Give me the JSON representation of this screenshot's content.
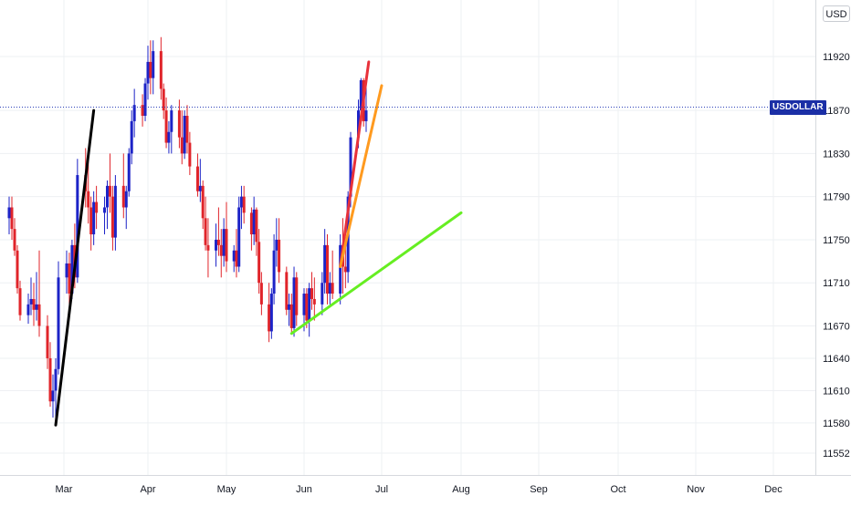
{
  "currency_label": "USD",
  "symbol_tag": "USDOLLAR",
  "colors": {
    "up": "#1c23c7",
    "down": "#e0242a",
    "grid": "#eef0f3",
    "axis_text": "#131722",
    "price_line": "#2a3fb8",
    "trend_black": "#000000",
    "trend_red": "#e8313a",
    "trend_orange": "#ff9a1f",
    "trend_green": "#66ee22"
  },
  "chart_data": {
    "type": "candlestick",
    "y_ticks": [
      "11920",
      "11870",
      "11830",
      "11790",
      "11750",
      "11710",
      "11670",
      "11640",
      "11610",
      "11580",
      "11552"
    ],
    "x_ticks": [
      "Mar",
      "Apr",
      "May",
      "Jun",
      "Jul",
      "Aug",
      "Sep",
      "Oct",
      "Nov",
      "Dec"
    ],
    "current_price_line": 11873,
    "ylim": [
      11540,
      11965
    ],
    "series": [
      {
        "label": "Feb 10",
        "open": 11770,
        "high": 11790,
        "low": 11755,
        "close": 11780
      },
      {
        "label": "Feb 11",
        "open": 11780,
        "high": 11790,
        "low": 11750,
        "close": 11760
      },
      {
        "label": "Feb 12",
        "open": 11760,
        "high": 11770,
        "low": 11735,
        "close": 11740
      },
      {
        "label": "Feb 13",
        "open": 11740,
        "high": 11745,
        "low": 11700,
        "close": 11705
      },
      {
        "label": "Feb 14",
        "open": 11705,
        "high": 11712,
        "low": 11675,
        "close": 11680
      },
      {
        "label": "Feb 17",
        "open": 11680,
        "high": 11700,
        "low": 11672,
        "close": 11690
      },
      {
        "label": "Feb 18",
        "open": 11690,
        "high": 11715,
        "low": 11680,
        "close": 11695
      },
      {
        "label": "Feb 19",
        "open": 11695,
        "high": 11710,
        "low": 11670,
        "close": 11685
      },
      {
        "label": "Feb 20",
        "open": 11685,
        "high": 11720,
        "low": 11675,
        "close": 11690
      },
      {
        "label": "Feb 21",
        "open": 11690,
        "high": 11740,
        "low": 11660,
        "close": 11670
      },
      {
        "label": "Feb 24",
        "open": 11670,
        "high": 11680,
        "low": 11630,
        "close": 11640
      },
      {
        "label": "Feb 25",
        "open": 11640,
        "high": 11655,
        "low": 11595,
        "close": 11600
      },
      {
        "label": "Feb 26",
        "open": 11600,
        "high": 11625,
        "low": 11585,
        "close": 11610
      },
      {
        "label": "Feb 27",
        "open": 11610,
        "high": 11640,
        "low": 11580,
        "close": 11630
      },
      {
        "label": "Feb 28",
        "open": 11630,
        "high": 11730,
        "low": 11625,
        "close": 11715
      },
      {
        "label": "Mar 02",
        "open": 11715,
        "high": 11740,
        "low": 11700,
        "close": 11728
      },
      {
        "label": "Mar 03",
        "open": 11728,
        "high": 11738,
        "low": 11690,
        "close": 11700
      },
      {
        "label": "Mar 04",
        "open": 11700,
        "high": 11750,
        "low": 11695,
        "close": 11745
      },
      {
        "label": "Mar 05",
        "open": 11745,
        "high": 11765,
        "low": 11705,
        "close": 11715
      },
      {
        "label": "Mar 06",
        "open": 11715,
        "high": 11825,
        "low": 11710,
        "close": 11810
      },
      {
        "label": "Mar 09",
        "open": 11810,
        "high": 11835,
        "low": 11780,
        "close": 11795
      },
      {
        "label": "Mar 10",
        "open": 11795,
        "high": 11830,
        "low": 11765,
        "close": 11780
      },
      {
        "label": "Mar 11",
        "open": 11780,
        "high": 11790,
        "low": 11740,
        "close": 11755
      },
      {
        "label": "Mar 12",
        "open": 11755,
        "high": 11795,
        "low": 11745,
        "close": 11785
      },
      {
        "label": "Mar 13",
        "open": 11785,
        "high": 11800,
        "low": 11760,
        "close": 11775
      },
      {
        "label": "Mar 16",
        "open": 11775,
        "high": 11790,
        "low": 11755,
        "close": 11780
      },
      {
        "label": "Mar 17",
        "open": 11780,
        "high": 11805,
        "low": 11760,
        "close": 11800
      },
      {
        "label": "Mar 18",
        "open": 11800,
        "high": 11830,
        "low": 11775,
        "close": 11790
      },
      {
        "label": "Mar 19",
        "open": 11790,
        "high": 11800,
        "low": 11740,
        "close": 11752
      },
      {
        "label": "Mar 20",
        "open": 11752,
        "high": 11810,
        "low": 11740,
        "close": 11800
      },
      {
        "label": "Mar 23",
        "open": 11800,
        "high": 11830,
        "low": 11770,
        "close": 11780
      },
      {
        "label": "Mar 24",
        "open": 11780,
        "high": 11800,
        "low": 11760,
        "close": 11795
      },
      {
        "label": "Mar 25",
        "open": 11795,
        "high": 11835,
        "low": 11790,
        "close": 11830
      },
      {
        "label": "Mar 26",
        "open": 11830,
        "high": 11870,
        "low": 11820,
        "close": 11860
      },
      {
        "label": "Mar 27",
        "open": 11860,
        "high": 11890,
        "low": 11845,
        "close": 11875
      },
      {
        "label": "Mar 30",
        "open": 11875,
        "high": 11885,
        "low": 11855,
        "close": 11865
      },
      {
        "label": "Mar 31",
        "open": 11865,
        "high": 11900,
        "low": 11860,
        "close": 11895
      },
      {
        "label": "Apr 01",
        "open": 11895,
        "high": 11930,
        "low": 11880,
        "close": 11915
      },
      {
        "label": "Apr 02",
        "open": 11915,
        "high": 11935,
        "low": 11885,
        "close": 11900
      },
      {
        "label": "Apr 03",
        "open": 11900,
        "high": 11935,
        "low": 11885,
        "close": 11925
      },
      {
        "label": "Apr 06",
        "open": 11925,
        "high": 11938,
        "low": 11880,
        "close": 11890
      },
      {
        "label": "Apr 07",
        "open": 11890,
        "high": 11895,
        "low": 11862,
        "close": 11870
      },
      {
        "label": "Apr 08",
        "open": 11870,
        "high": 11882,
        "low": 11835,
        "close": 11840
      },
      {
        "label": "Apr 09",
        "open": 11840,
        "high": 11860,
        "low": 11830,
        "close": 11850
      },
      {
        "label": "Apr 10",
        "open": 11850,
        "high": 11875,
        "low": 11830,
        "close": 11870
      },
      {
        "label": "Apr 13",
        "open": 11870,
        "high": 11880,
        "low": 11835,
        "close": 11845
      },
      {
        "label": "Apr 14",
        "open": 11845,
        "high": 11870,
        "low": 11820,
        "close": 11830
      },
      {
        "label": "Apr 15",
        "open": 11830,
        "high": 11870,
        "low": 11825,
        "close": 11865
      },
      {
        "label": "Apr 16",
        "open": 11865,
        "high": 11875,
        "low": 11830,
        "close": 11840
      },
      {
        "label": "Apr 17",
        "open": 11840,
        "high": 11850,
        "low": 11810,
        "close": 11818
      },
      {
        "label": "Apr 20",
        "open": 11818,
        "high": 11830,
        "low": 11790,
        "close": 11795
      },
      {
        "label": "Apr 21",
        "open": 11795,
        "high": 11825,
        "low": 11785,
        "close": 11800
      },
      {
        "label": "Apr 22",
        "open": 11800,
        "high": 11805,
        "low": 11760,
        "close": 11770
      },
      {
        "label": "Apr 23",
        "open": 11770,
        "high": 11790,
        "low": 11740,
        "close": 11745
      },
      {
        "label": "Apr 24",
        "open": 11745,
        "high": 11770,
        "low": 11715,
        "close": 11740
      },
      {
        "label": "Apr 27",
        "open": 11740,
        "high": 11765,
        "low": 11725,
        "close": 11750
      },
      {
        "label": "Apr 28",
        "open": 11750,
        "high": 11780,
        "low": 11735,
        "close": 11745
      },
      {
        "label": "Apr 29",
        "open": 11745,
        "high": 11760,
        "low": 11715,
        "close": 11735
      },
      {
        "label": "Apr 30",
        "open": 11735,
        "high": 11770,
        "low": 11725,
        "close": 11760
      },
      {
        "label": "May 01",
        "open": 11760,
        "high": 11785,
        "low": 11720,
        "close": 11730
      },
      {
        "label": "May 04",
        "open": 11730,
        "high": 11745,
        "low": 11720,
        "close": 11740
      },
      {
        "label": "May 05",
        "open": 11740,
        "high": 11760,
        "low": 11715,
        "close": 11725
      },
      {
        "label": "May 06",
        "open": 11725,
        "high": 11790,
        "low": 11720,
        "close": 11780
      },
      {
        "label": "May 07",
        "open": 11780,
        "high": 11800,
        "low": 11760,
        "close": 11790
      },
      {
        "label": "May 08",
        "open": 11790,
        "high": 11800,
        "low": 11765,
        "close": 11775
      },
      {
        "label": "May 11",
        "open": 11775,
        "high": 11780,
        "low": 11740,
        "close": 11755
      },
      {
        "label": "May 12",
        "open": 11755,
        "high": 11790,
        "low": 11745,
        "close": 11778
      },
      {
        "label": "May 13",
        "open": 11778,
        "high": 11780,
        "low": 11735,
        "close": 11748
      },
      {
        "label": "May 14",
        "open": 11748,
        "high": 11760,
        "low": 11700,
        "close": 11710
      },
      {
        "label": "May 15",
        "open": 11710,
        "high": 11720,
        "low": 11680,
        "close": 11690
      },
      {
        "label": "May 18",
        "open": 11690,
        "high": 11710,
        "low": 11655,
        "close": 11665
      },
      {
        "label": "May 19",
        "open": 11665,
        "high": 11705,
        "low": 11658,
        "close": 11700
      },
      {
        "label": "May 20",
        "open": 11700,
        "high": 11755,
        "low": 11690,
        "close": 11740
      },
      {
        "label": "May 21",
        "open": 11740,
        "high": 11770,
        "low": 11725,
        "close": 11750
      },
      {
        "label": "May 22",
        "open": 11750,
        "high": 11770,
        "low": 11710,
        "close": 11720
      },
      {
        "label": "May 25",
        "open": 11720,
        "high": 11725,
        "low": 11680,
        "close": 11685
      },
      {
        "label": "May 26",
        "open": 11685,
        "high": 11700,
        "low": 11670,
        "close": 11690
      },
      {
        "label": "May 27",
        "open": 11690,
        "high": 11700,
        "low": 11662,
        "close": 11668
      },
      {
        "label": "May 28",
        "open": 11668,
        "high": 11725,
        "low": 11660,
        "close": 11715
      },
      {
        "label": "May 29",
        "open": 11715,
        "high": 11720,
        "low": 11670,
        "close": 11680
      },
      {
        "label": "Jun 01",
        "open": 11680,
        "high": 11705,
        "low": 11665,
        "close": 11700
      },
      {
        "label": "Jun 02",
        "open": 11700,
        "high": 11705,
        "low": 11668,
        "close": 11675
      },
      {
        "label": "Jun 03",
        "open": 11675,
        "high": 11710,
        "low": 11660,
        "close": 11705
      },
      {
        "label": "Jun 04",
        "open": 11705,
        "high": 11720,
        "low": 11685,
        "close": 11695
      },
      {
        "label": "Jun 05",
        "open": 11695,
        "high": 11715,
        "low": 11675,
        "close": 11690
      },
      {
        "label": "Jun 08",
        "open": 11690,
        "high": 11720,
        "low": 11680,
        "close": 11710
      },
      {
        "label": "Jun 09",
        "open": 11710,
        "high": 11760,
        "low": 11700,
        "close": 11745
      },
      {
        "label": "Jun 10",
        "open": 11745,
        "high": 11755,
        "low": 11690,
        "close": 11700
      },
      {
        "label": "Jun 11",
        "open": 11700,
        "high": 11720,
        "low": 11690,
        "close": 11710
      },
      {
        "label": "Jun 12",
        "open": 11710,
        "high": 11740,
        "low": 11695,
        "close": 11700
      },
      {
        "label": "Jun 15",
        "open": 11700,
        "high": 11755,
        "low": 11690,
        "close": 11745
      },
      {
        "label": "Jun 16",
        "open": 11745,
        "high": 11770,
        "low": 11700,
        "close": 11725
      },
      {
        "label": "Jun 17",
        "open": 11725,
        "high": 11750,
        "low": 11705,
        "close": 11720
      },
      {
        "label": "Jun 18",
        "open": 11720,
        "high": 11795,
        "low": 11710,
        "close": 11790
      },
      {
        "label": "Jun 19",
        "open": 11790,
        "high": 11850,
        "low": 11780,
        "close": 11845
      },
      {
        "label": "Jun 22",
        "open": 11845,
        "high": 11880,
        "low": 11835,
        "close": 11870
      },
      {
        "label": "Jun 23",
        "open": 11870,
        "high": 11900,
        "low": 11860,
        "close": 11898
      },
      {
        "label": "Jun 24",
        "open": 11898,
        "high": 11900,
        "low": 11855,
        "close": 11860
      },
      {
        "label": "Jun 25",
        "open": 11860,
        "high": 11895,
        "low": 11850,
        "close": 11870
      }
    ],
    "trend_lines": [
      {
        "color_key": "trend_black",
        "from": {
          "date": "Feb 27",
          "price": 11578
        },
        "to": {
          "date": "Mar 12",
          "price": 11870
        }
      },
      {
        "color_key": "trend_red",
        "from": {
          "date": "Jun 15",
          "price": 11725
        },
        "to": {
          "date": "Jun 26",
          "price": 11915
        }
      },
      {
        "color_key": "trend_orange",
        "from": {
          "date": "Jun 15",
          "price": 11725
        },
        "to": {
          "date": "Jul 01",
          "price": 11893
        }
      },
      {
        "color_key": "trend_green",
        "from": {
          "date": "May 27",
          "price": 11663
        },
        "to": {
          "date": "Aug 01",
          "price": 11775
        }
      }
    ]
  }
}
